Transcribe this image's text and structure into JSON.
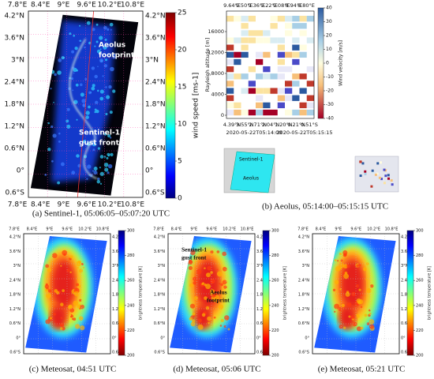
{
  "panels": [
    {
      "caption": "(a) Sentinel-1, 05:06:05–05:07:20 UTC",
      "top_labels": [
        "7.8°E",
        "8.4°E",
        "9°E",
        "9.6°E",
        "10.2°E",
        "10.8°E"
      ],
      "bottom_labels": [
        "7.8°E",
        "8.4°E",
        "9°E",
        "9.6°E",
        "10.2°E",
        "10.8°E"
      ],
      "left_labels": [
        "4.2°N",
        "3.6°N",
        "3°N",
        "2.4°N",
        "1.8°N",
        "1.2°N",
        "0.6°N",
        "0°",
        "0.6°S"
      ],
      "right_labels": [
        "4.2°N",
        "3.6°N",
        "3°N",
        "2.4°N",
        "1.8°N",
        "1.2°N",
        "0.6°N",
        "0°",
        "0.6°S"
      ],
      "colorbar": {
        "label": "wind speed [ms-1]",
        "ticks": [
          25,
          20,
          15,
          10,
          5,
          0
        ]
      },
      "annotations": [
        [
          "Aeolus",
          "footprint"
        ],
        [
          "Sentinel-1",
          "gust front"
        ]
      ]
    },
    {
      "caption": "(b) Aeolus, 05:14:00–05:15:15 UTC",
      "top_labels": [
        "9.64°E",
        "9.50°E",
        "9.36°E",
        "9.22°E",
        "9.08°E",
        "8.94°E",
        "8.80°E"
      ],
      "bottom_labels": [
        "4.39°N",
        "3.55°N",
        "2.71°N",
        "2.04°N",
        "1.20°N",
        "0.21°N",
        "0.51°S"
      ],
      "times": [
        "2020-05-22T05:14:00",
        "2020-05-22T05:15:15"
      ],
      "y_title": "Rayleigh altitude [m]",
      "y_ticks": [
        16000,
        12000,
        8000,
        4000,
        0
      ],
      "colorbar": {
        "label": "Wind velocity [m/s]",
        "ticks": [
          40,
          30,
          20,
          10,
          0,
          -10,
          -20,
          -30,
          -40
        ]
      },
      "inset_labels": [
        "Sentinel-1",
        "Aeolus"
      ]
    },
    {
      "caption": "(c) Meteosat, 04:51 UTC",
      "top_labels": [
        "7.8°E",
        "8.4°E",
        "9°E",
        "9.6°E",
        "10.2°E",
        "10.8°E"
      ],
      "left_labels": [
        "4.2°N",
        "3.6°N",
        "3°N",
        "2.4°N",
        "1.8°N",
        "1.2°N",
        "0.6°N",
        "0°",
        "0.6°S"
      ],
      "right_labels": [
        "4.2°N",
        "3.6°N",
        "3°N",
        "2.4°N",
        "1.8°N",
        "1.2°N",
        "0.6°N",
        "0°",
        "0.6°S"
      ],
      "colorbar": {
        "label": "brightness temperature [K]",
        "ticks": [
          300,
          280,
          260,
          240,
          220,
          200
        ]
      }
    },
    {
      "caption": "(d) Meteosat, 05:06 UTC",
      "top_labels": [
        "7.8°E",
        "8.4°E",
        "9°E",
        "9.6°E",
        "10.2°E",
        "10.8°E"
      ],
      "left_labels": [
        "4.2°N",
        "3.6°N",
        "3°N",
        "2.4°N",
        "1.8°N",
        "1.2°N",
        "0.6°N",
        "0°",
        "0.6°S"
      ],
      "right_labels": [
        "4.2°N",
        "3.6°N",
        "3°N",
        "2.4°N",
        "1.8°N",
        "1.2°N",
        "0.6°N",
        "0°",
        "0.6°S"
      ],
      "colorbar": {
        "label": "brightness temperature [K]",
        "ticks": [
          300,
          280,
          260,
          240,
          220,
          200
        ]
      },
      "annotations": [
        [
          "Sentinel-1",
          "gust front"
        ],
        [
          "Aeolus",
          "footprint"
        ]
      ]
    },
    {
      "caption": "(e) Meteosat, 05:21 UTC",
      "top_labels": [
        "7.8°E",
        "8.4°E",
        "9°E",
        "9.6°E",
        "10.2°E",
        "10.8°E"
      ],
      "left_labels": [
        "4.2°N",
        "3.6°N",
        "3°N",
        "2.4°N",
        "1.8°N",
        "1.2°N",
        "0.6°N",
        "0°",
        "0.6°S"
      ],
      "right_labels": [
        "4.2°N",
        "3.6°N",
        "3°N",
        "2.4°N",
        "1.8°N",
        "1.2°N",
        "0.6°N",
        "0°",
        "0.6°S"
      ],
      "colorbar": {
        "label": "brightness temperature [K]",
        "ticks": [
          300,
          280,
          260,
          240,
          220,
          200
        ]
      }
    }
  ]
}
